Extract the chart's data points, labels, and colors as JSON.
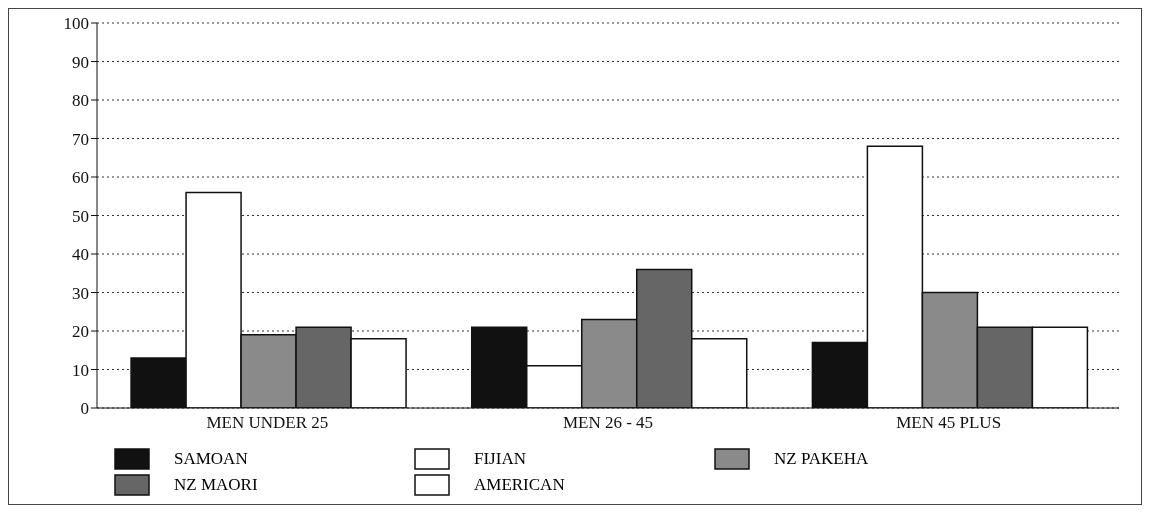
{
  "chart_data": {
    "type": "bar",
    "categories": [
      "MEN UNDER 25",
      "MEN 26 - 45",
      "MEN 45 PLUS"
    ],
    "series": [
      {
        "name": "SAMOAN",
        "color": "#111111",
        "values": [
          13,
          21,
          17
        ]
      },
      {
        "name": "FIJIAN",
        "color": "#ffffff",
        "values": [
          56,
          11,
          68
        ]
      },
      {
        "name": "NZ PAKEHA",
        "color": "#8a8a8a",
        "values": [
          19,
          23,
          30
        ]
      },
      {
        "name": "NZ MAORI",
        "color": "#666666",
        "values": [
          21,
          36,
          21
        ]
      },
      {
        "name": "AMERICAN",
        "color": "#ffffff",
        "values": [
          18,
          18,
          21
        ]
      }
    ],
    "ylim": [
      0,
      100
    ],
    "yticks": [
      0,
      10,
      20,
      30,
      40,
      50,
      60,
      70,
      80,
      90,
      100
    ],
    "grid": "y",
    "legend": "bottom"
  }
}
